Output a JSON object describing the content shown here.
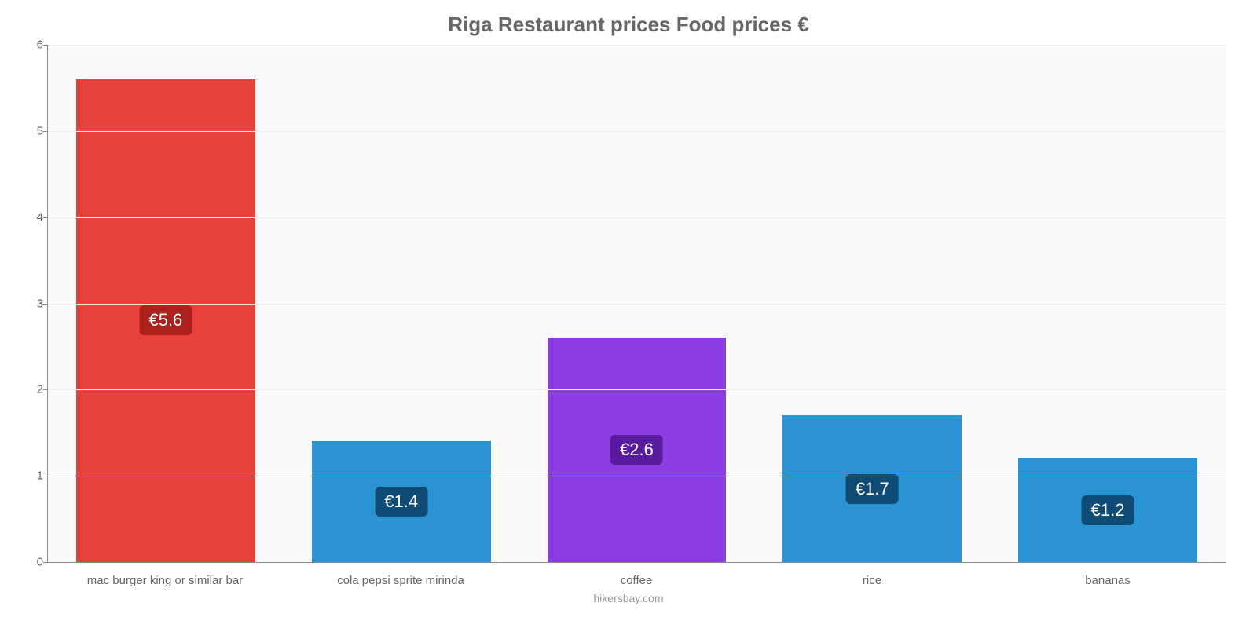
{
  "chart": {
    "type": "bar",
    "title": "Riga Restaurant prices Food prices €",
    "title_color": "#666666",
    "title_fontsize": 26,
    "background_color": "#fafafa",
    "grid_color": "#eeeeee",
    "axis_line_color": "#888888",
    "tick_label_color": "#666666",
    "tick_label_fontsize": 15,
    "ylim": [
      0,
      6
    ],
    "ytick_step": 1,
    "yticks": [
      0,
      1,
      2,
      3,
      4,
      5,
      6
    ],
    "bar_width_ratio": 0.76,
    "categories": [
      "mac burger king or similar bar",
      "cola pepsi sprite mirinda",
      "coffee",
      "rice",
      "bananas"
    ],
    "values": [
      5.6,
      1.4,
      2.6,
      1.7,
      1.2
    ],
    "value_labels": [
      "€5.6",
      "€1.4",
      "€2.6",
      "€1.7",
      "€1.2"
    ],
    "bar_colors": [
      "#e8403a",
      "#2a93d4",
      "#8b3fe0",
      "#2a93d4",
      "#2a93d4"
    ],
    "badge_bg_colors": [
      "#a9201c",
      "#0f4c75",
      "#5a1aa0",
      "#0f4c75",
      "#0f4c75"
    ],
    "badge_text_color": "#ffffff",
    "badge_fontsize": 22,
    "credit": "hikersbay.com",
    "credit_color": "#999999"
  }
}
